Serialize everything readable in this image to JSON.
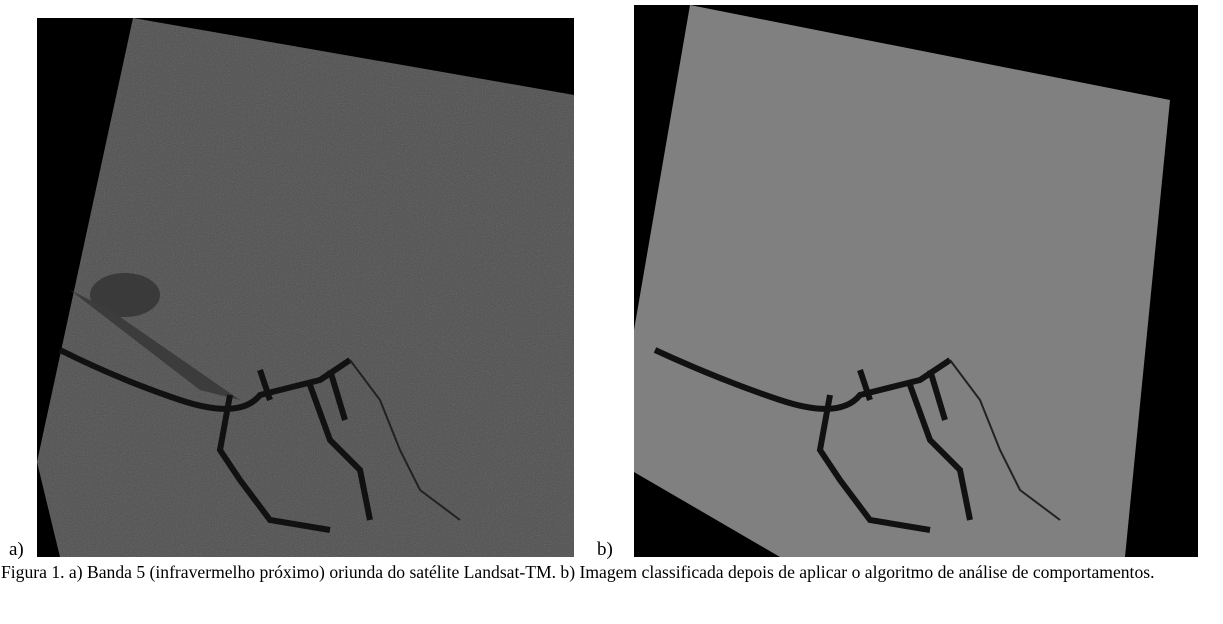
{
  "figure": {
    "panels": [
      {
        "label": "a)"
      },
      {
        "label": "b)"
      }
    ],
    "caption": "Figura 1. a) Banda 5 (infravermelho próximo) oriunda do satélite Landsat-TM. b) Imagem classificada depois de aplicar o algoritmo de análise de comportamentos."
  }
}
